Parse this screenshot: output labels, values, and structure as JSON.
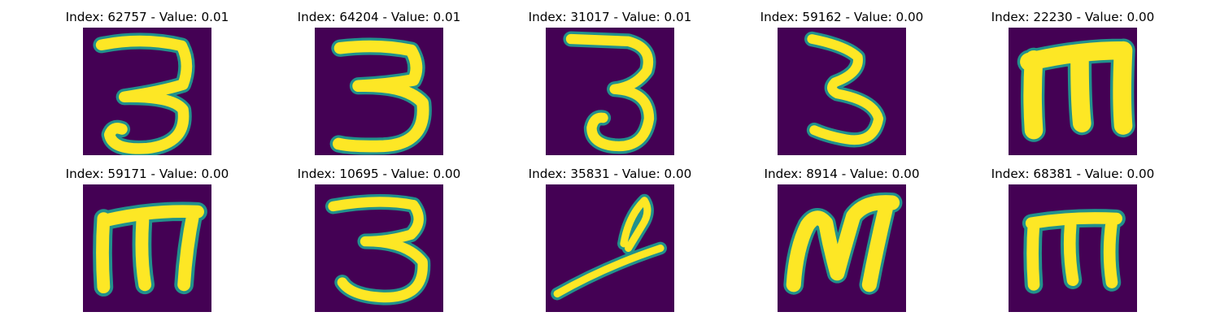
{
  "colors": {
    "background": "#440154",
    "stroke_outer": "#21918c",
    "stroke_inner": "#fde725",
    "text": "#000000"
  },
  "panels": [
    {
      "title": "Index: 62757 - Value: 0.01",
      "glyph": "three-a"
    },
    {
      "title": "Index: 64204 - Value: 0.01",
      "glyph": "three-b"
    },
    {
      "title": "Index: 31017 - Value: 0.01",
      "glyph": "three-c"
    },
    {
      "title": "Index: 59162 - Value: 0.00",
      "glyph": "three-d"
    },
    {
      "title": "Index: 22230 - Value: 0.00",
      "glyph": "m-a"
    },
    {
      "title": "Index: 59171 - Value: 0.00",
      "glyph": "m-b"
    },
    {
      "title": "Index: 10695 - Value: 0.00",
      "glyph": "three-e"
    },
    {
      "title": "Index: 35831 - Value: 0.00",
      "glyph": "stroke-f"
    },
    {
      "title": "Index: 8914 - Value: 0.00",
      "glyph": "m-c"
    },
    {
      "title": "Index: 68381 - Value: 0.00",
      "glyph": "m-d"
    }
  ]
}
